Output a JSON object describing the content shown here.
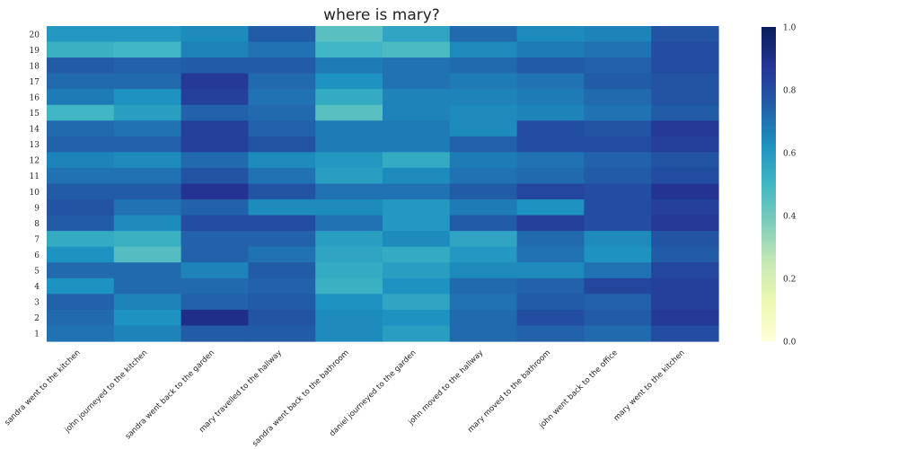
{
  "chart_data": {
    "type": "heatmap",
    "title": "where is mary?",
    "x_categories": [
      "sandra went to the kitchen",
      "john journeyed to the kitchen",
      "sandra went back to the garden",
      "mary travelled to the hallway",
      "sandra went back to the bathroom",
      "daniel journeyed to the garden",
      "john moved to the hallway",
      "mary moved to the bathroom",
      "john went back to the office",
      "mary went to the kitchen"
    ],
    "y_categories": [
      "20",
      "19",
      "18",
      "17",
      "16",
      "15",
      "14",
      "13",
      "12",
      "11",
      "10",
      "9",
      "8",
      "7",
      "6",
      "5",
      "4",
      "3",
      "2",
      "1"
    ],
    "values": [
      [
        0.6,
        0.6,
        0.64,
        0.76,
        0.45,
        0.56,
        0.72,
        0.64,
        0.66,
        0.78
      ],
      [
        0.52,
        0.5,
        0.66,
        0.7,
        0.5,
        0.48,
        0.64,
        0.68,
        0.7,
        0.8
      ],
      [
        0.76,
        0.74,
        0.76,
        0.76,
        0.68,
        0.7,
        0.72,
        0.76,
        0.74,
        0.8
      ],
      [
        0.72,
        0.72,
        0.86,
        0.72,
        0.62,
        0.7,
        0.68,
        0.7,
        0.76,
        0.78
      ],
      [
        0.68,
        0.62,
        0.84,
        0.7,
        0.54,
        0.66,
        0.66,
        0.68,
        0.72,
        0.78
      ],
      [
        0.5,
        0.58,
        0.74,
        0.72,
        0.45,
        0.66,
        0.64,
        0.66,
        0.7,
        0.76
      ],
      [
        0.72,
        0.7,
        0.84,
        0.74,
        0.68,
        0.68,
        0.64,
        0.8,
        0.78,
        0.86
      ],
      [
        0.74,
        0.74,
        0.84,
        0.78,
        0.68,
        0.68,
        0.74,
        0.8,
        0.8,
        0.84
      ],
      [
        0.66,
        0.64,
        0.72,
        0.64,
        0.6,
        0.54,
        0.68,
        0.7,
        0.74,
        0.78
      ],
      [
        0.7,
        0.7,
        0.78,
        0.7,
        0.58,
        0.64,
        0.7,
        0.72,
        0.76,
        0.8
      ],
      [
        0.76,
        0.76,
        0.88,
        0.78,
        0.7,
        0.7,
        0.76,
        0.82,
        0.8,
        0.88
      ],
      [
        0.78,
        0.7,
        0.74,
        0.64,
        0.64,
        0.6,
        0.68,
        0.62,
        0.8,
        0.84
      ],
      [
        0.76,
        0.64,
        0.8,
        0.8,
        0.7,
        0.6,
        0.76,
        0.84,
        0.8,
        0.86
      ],
      [
        0.54,
        0.52,
        0.74,
        0.74,
        0.58,
        0.64,
        0.56,
        0.72,
        0.64,
        0.78
      ],
      [
        0.62,
        0.46,
        0.74,
        0.7,
        0.56,
        0.54,
        0.6,
        0.7,
        0.62,
        0.76
      ],
      [
        0.72,
        0.72,
        0.66,
        0.76,
        0.54,
        0.58,
        0.64,
        0.64,
        0.7,
        0.82
      ],
      [
        0.62,
        0.72,
        0.72,
        0.74,
        0.52,
        0.62,
        0.72,
        0.74,
        0.82,
        0.84
      ],
      [
        0.74,
        0.66,
        0.74,
        0.76,
        0.62,
        0.56,
        0.7,
        0.76,
        0.74,
        0.84
      ],
      [
        0.72,
        0.62,
        0.9,
        0.78,
        0.64,
        0.62,
        0.72,
        0.8,
        0.76,
        0.86
      ],
      [
        0.7,
        0.66,
        0.76,
        0.76,
        0.64,
        0.58,
        0.72,
        0.74,
        0.72,
        0.8
      ]
    ],
    "colorbar": {
      "colormap": "YlGnBu",
      "range": [
        0.0,
        1.0
      ],
      "ticks": [
        "0.0",
        "0.2",
        "0.4",
        "0.6",
        "0.8",
        "1.0"
      ]
    },
    "grid": false
  }
}
